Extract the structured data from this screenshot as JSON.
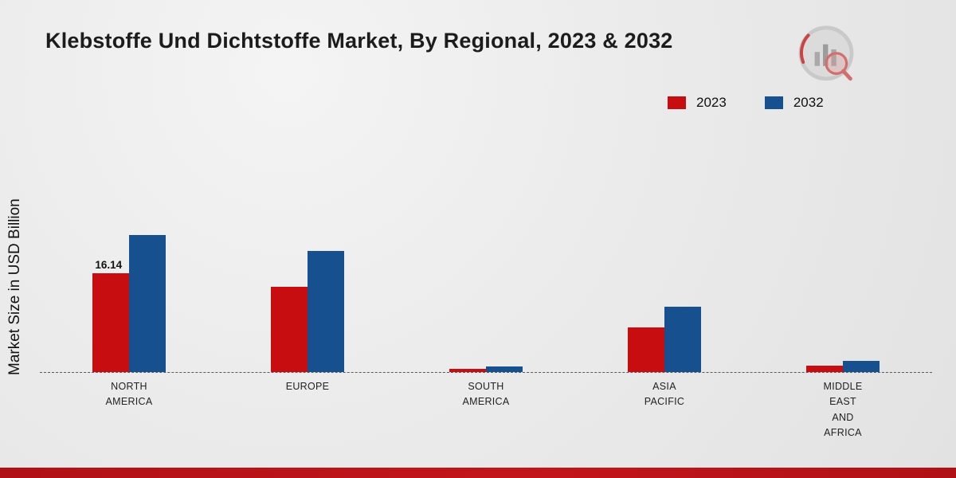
{
  "title": "Klebstoffe Und Dichtstoffe Market, By Regional, 2023 & 2032",
  "y_axis_label": "Market Size in USD Billion",
  "legend": [
    {
      "label": "2023",
      "color": "#c70d10"
    },
    {
      "label": "2032",
      "color": "#17508f"
    }
  ],
  "colors": {
    "footer_accent": "#b01116",
    "series_2023": "#c70d10",
    "series_2032": "#17508f"
  },
  "chart_data": {
    "type": "bar",
    "title": "Klebstoffe Und Dichtstoffe Market, By Regional, 2023 & 2032",
    "ylabel": "Market Size in USD Billion",
    "xlabel": "",
    "categories": [
      "NORTH AMERICA",
      "EUROPE",
      "SOUTH AMERICA",
      "ASIA PACIFIC",
      "MIDDLE EAST AND AFRICA"
    ],
    "category_label_lines": [
      [
        "NORTH",
        "AMERICA"
      ],
      [
        "EUROPE"
      ],
      [
        "SOUTH",
        "AMERICA"
      ],
      [
        "ASIA",
        "PACIFIC"
      ],
      [
        "MIDDLE",
        "EAST",
        "AND",
        "AFRICA"
      ]
    ],
    "series": [
      {
        "name": "2023",
        "color": "#c70d10",
        "values": [
          16.14,
          13.9,
          0.5,
          7.3,
          1.0
        ]
      },
      {
        "name": "2032",
        "color": "#17508f",
        "values": [
          22.4,
          19.8,
          0.9,
          10.7,
          1.8
        ]
      }
    ],
    "data_labels": [
      {
        "series": "2023",
        "category": "NORTH AMERICA",
        "text": "16.14"
      }
    ],
    "ylim": [
      0,
      26
    ],
    "grid": false,
    "baseline_style": "dashed",
    "legend_position": "top-right"
  }
}
